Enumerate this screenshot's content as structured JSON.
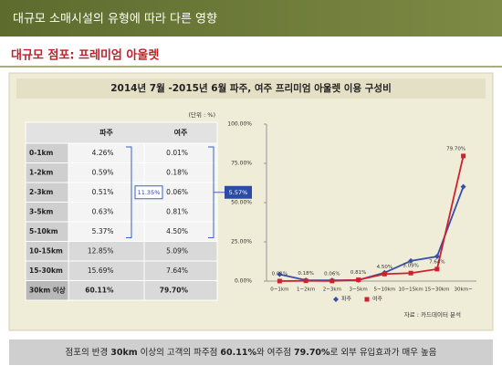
{
  "header": {
    "title": "대규모 소매시설의 유형에 따라 다른 영향",
    "subtitle": "대규모 점포: 프레미엄 아울렛"
  },
  "panel_title": "2014년 7월 -2015년 6월 파주, 여주 프리미엄 아울렛 이용 구성비",
  "table": {
    "unit": "(단위 : %)",
    "columns": [
      "파주",
      "여주"
    ],
    "rows": [
      [
        "0-1km",
        "4.26%",
        "0.01%"
      ],
      [
        "1-2km",
        "0.59%",
        "0.18%"
      ],
      [
        "2-3km",
        "0.51%",
        "0.06%"
      ],
      [
        "3-5km",
        "0.63%",
        "0.81%"
      ],
      [
        "5-10km",
        "5.37%",
        "4.50%"
      ],
      [
        "10-15km",
        "12.85%",
        "5.09%"
      ],
      [
        "15-30km",
        "15.69%",
        "7.64%"
      ],
      [
        "30km 이상",
        "60.11%",
        "79.70%"
      ]
    ],
    "bracket_sums": [
      "11.35%",
      "5.57%"
    ]
  },
  "chart_data": {
    "type": "line",
    "categories": [
      "0~1km",
      "1~2km",
      "2~3km",
      "3~5km",
      "5~10km",
      "10~15km",
      "15~30km",
      "30km~"
    ],
    "series": [
      {
        "name": "파주",
        "color": "#3a4fa8",
        "values": [
          4.26,
          0.59,
          0.51,
          0.63,
          5.37,
          12.85,
          15.69,
          60.11
        ]
      },
      {
        "name": "여주",
        "color": "#d0202e",
        "values": [
          0.01,
          0.18,
          0.06,
          0.81,
          4.5,
          5.09,
          7.64,
          79.7
        ],
        "value_labels": [
          "0.01%",
          "0.18%",
          "0.06%",
          "0.81%",
          "4.50%",
          "5.09%",
          "7.64%",
          "79.70%"
        ]
      }
    ],
    "ylim": [
      0,
      100
    ],
    "yticks": [
      {
        "value": 0,
        "label": "0.00%"
      },
      {
        "value": 25,
        "label": "25.00%"
      },
      {
        "value": 50,
        "label": "50.00%"
      },
      {
        "value": 75,
        "label": "75.00%"
      },
      {
        "value": 100,
        "label": "100.00%"
      }
    ],
    "legend": "bottom",
    "source": "자료 : 카드데이터 분석"
  },
  "footer": {
    "segments": [
      "점포의 반경 ",
      "30km",
      " 이상의 고객의 파주점 ",
      "60.11%",
      "와 여주점 ",
      "79.70%",
      "로 외부 유입효과가 매우 높음"
    ]
  }
}
